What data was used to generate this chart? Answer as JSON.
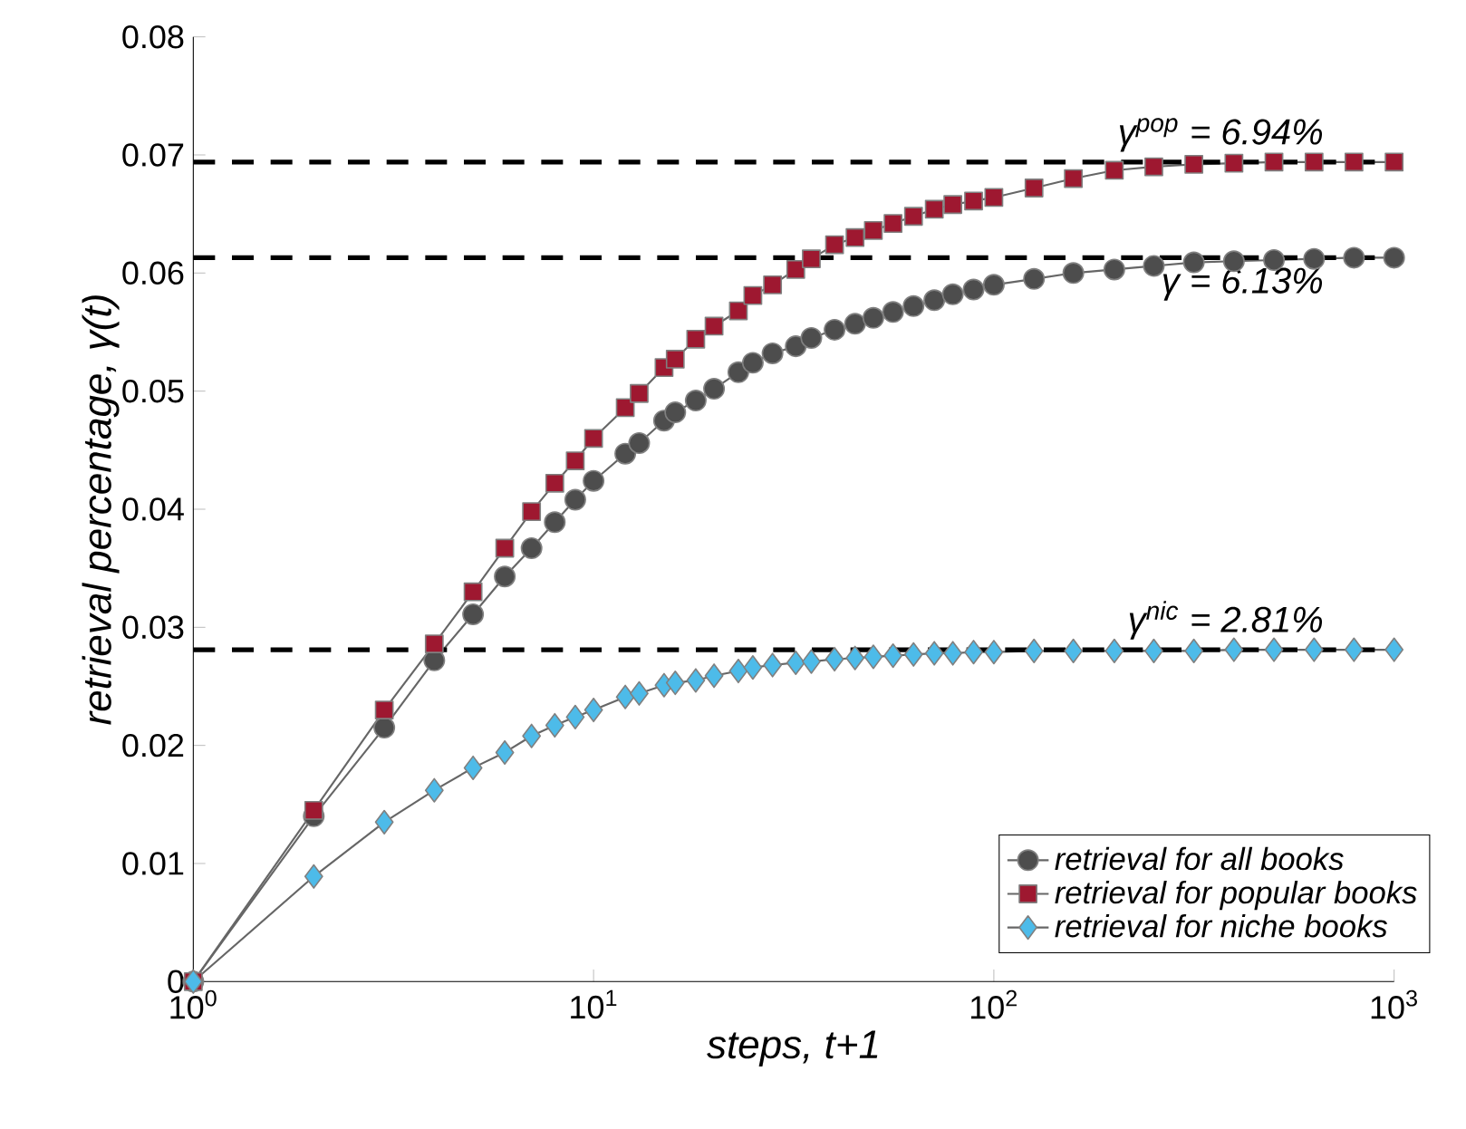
{
  "chart_data": {
    "type": "line",
    "xlabel": "steps, t+1",
    "ylabel": "retrieval percentage, γ(t)",
    "log": "x",
    "xlim": [
      1,
      1000
    ],
    "ylim": [
      0,
      0.08
    ],
    "xticks": [
      {
        "value": 1,
        "label": "10$^{0}$"
      },
      {
        "value": 10,
        "label": "10$^{1}$"
      },
      {
        "value": 100,
        "label": "10$^{2}$"
      },
      {
        "value": 1000,
        "label": "10$^{3}$"
      }
    ],
    "yticks": [
      0,
      0.01,
      0.02,
      0.03,
      0.04,
      0.05,
      0.06,
      0.07,
      0.08
    ],
    "x": [
      1,
      2,
      3,
      4,
      5,
      6,
      7,
      8,
      9,
      10,
      12,
      13,
      15,
      16,
      18,
      20,
      23,
      25,
      28,
      32,
      35,
      40,
      45,
      50,
      56,
      63,
      71,
      79,
      89,
      100,
      126,
      158,
      200,
      251,
      316,
      398,
      501,
      631,
      794,
      1000
    ],
    "series": [
      {
        "name": "retrieval for all books",
        "color": "#4d4d4d",
        "marker": "circle",
        "values": [
          0,
          0.014,
          0.0215,
          0.0272,
          0.0311,
          0.0343,
          0.0367,
          0.0389,
          0.0408,
          0.0424,
          0.0447,
          0.0456,
          0.0475,
          0.0482,
          0.0492,
          0.0502,
          0.0516,
          0.0524,
          0.0532,
          0.0538,
          0.0545,
          0.0552,
          0.0557,
          0.0562,
          0.0567,
          0.0572,
          0.0577,
          0.0582,
          0.0586,
          0.059,
          0.0595,
          0.06,
          0.0603,
          0.0606,
          0.0609,
          0.061,
          0.0611,
          0.0612,
          0.0613,
          0.0613
        ]
      },
      {
        "name": "retrieval for popular books",
        "color": "#9e1830",
        "marker": "square",
        "values": [
          0,
          0.0145,
          0.023,
          0.0286,
          0.033,
          0.0367,
          0.0398,
          0.0422,
          0.0441,
          0.046,
          0.0486,
          0.0498,
          0.052,
          0.0527,
          0.0544,
          0.0555,
          0.0568,
          0.0581,
          0.059,
          0.0603,
          0.0612,
          0.0624,
          0.063,
          0.0636,
          0.0642,
          0.0648,
          0.0654,
          0.0658,
          0.0661,
          0.0664,
          0.0672,
          0.068,
          0.0687,
          0.069,
          0.0692,
          0.0693,
          0.0694,
          0.0694,
          0.0694,
          0.0694
        ]
      },
      {
        "name": "retrieval for niche books",
        "color": "#4dbbe9",
        "marker": "diamond",
        "values": [
          0,
          0.0089,
          0.0135,
          0.0162,
          0.0181,
          0.0194,
          0.0208,
          0.0217,
          0.0224,
          0.023,
          0.0241,
          0.0244,
          0.0251,
          0.0253,
          0.0255,
          0.0259,
          0.0263,
          0.0266,
          0.0268,
          0.027,
          0.0271,
          0.0273,
          0.0274,
          0.0275,
          0.0276,
          0.0277,
          0.0278,
          0.0278,
          0.0279,
          0.0279,
          0.028,
          0.028,
          0.028,
          0.028,
          0.028,
          0.0281,
          0.0281,
          0.0281,
          0.0281,
          0.0281
        ]
      }
    ],
    "ref_lines": [
      {
        "axis": "y",
        "value": 0.0694,
        "color": "#000000",
        "line_style": "dashed",
        "label": "γ$^{pop}$ = 6.94%"
      },
      {
        "axis": "y",
        "value": 0.0613,
        "color": "#000000",
        "line_style": "dashed",
        "label": "γ = 6.13%"
      },
      {
        "axis": "y",
        "value": 0.0281,
        "color": "#000000",
        "line_style": "dashed",
        "label": "γ$^{nic}$ = 2.81%"
      }
    ],
    "legend": "bottom right",
    "grid": false
  }
}
